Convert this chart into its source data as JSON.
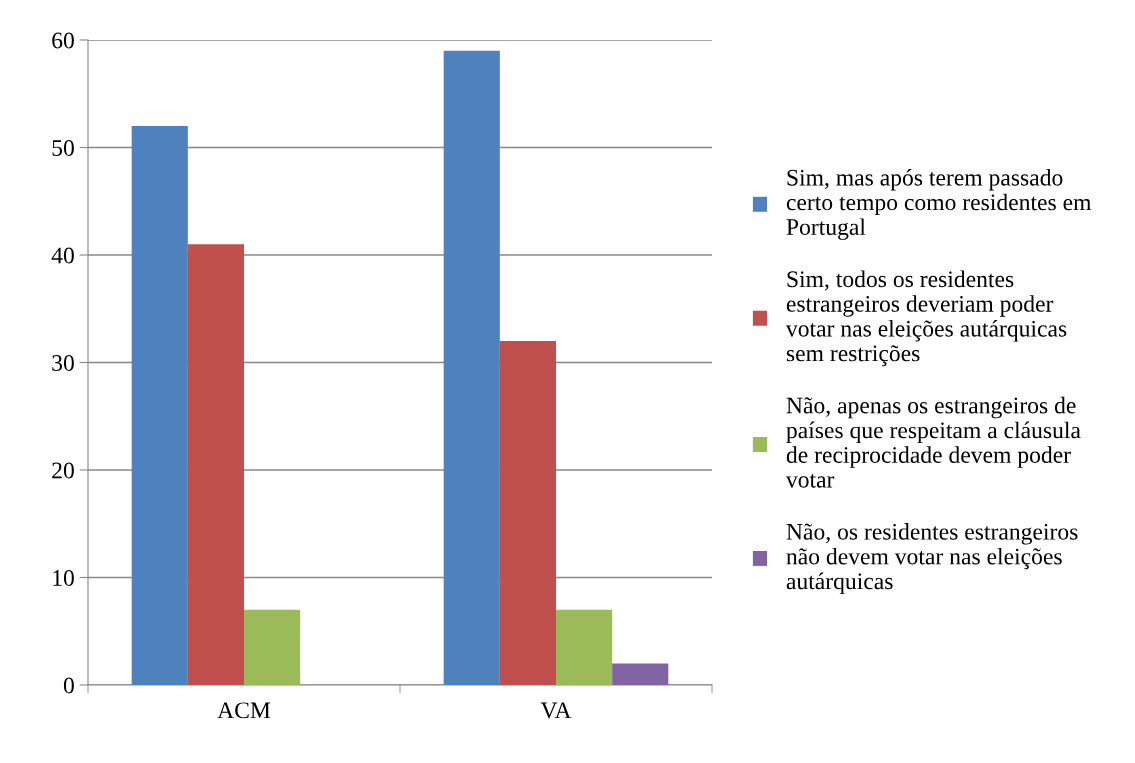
{
  "chart_data": {
    "type": "bar",
    "categories": [
      "ACM",
      "VA"
    ],
    "series": [
      {
        "name": "Sim, mas após terem passado\ncerto tempo como residentes em\nPortugal",
        "color": "#4f81bd",
        "values": [
          52,
          59
        ]
      },
      {
        "name": "Sim, todos os residentes\nestrangeiros deveriam poder\nvotar nas eleições autárquicas\nsem restrições",
        "color": "#c0504d",
        "values": [
          41,
          32
        ]
      },
      {
        "name": "Não, apenas os estrangeiros de\npaíses que respeitam a cláusula\nde reciprocidade devem poder\nvotar",
        "color": "#9bbb59",
        "values": [
          7,
          7
        ]
      },
      {
        "name": "Não, os residentes estrangeiros\nnão devem votar nas eleições\nautárquicas",
        "color": "#8064a2",
        "values": [
          0,
          2
        ]
      }
    ],
    "ylim": [
      0,
      60
    ],
    "yticks": [
      0,
      10,
      20,
      30,
      40,
      50,
      60
    ],
    "grid": "y",
    "legend": "right"
  }
}
